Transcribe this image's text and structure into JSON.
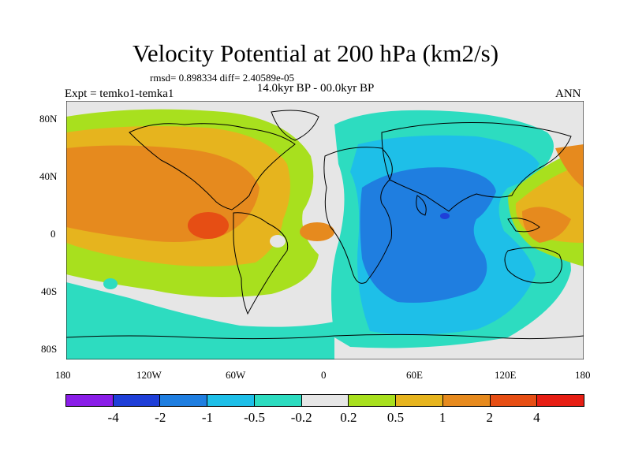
{
  "title": "Velocity Potential at 200 hPa (km2/s)",
  "stats": "rmsd= 0.898334 diff= 2.40589e-05",
  "period": "14.0kyr BP - 00.0kyr BP",
  "expt": "Expt = temko1-temka1",
  "season": "ANN",
  "lat_ticks": [
    "80N",
    "40N",
    "0",
    "40S",
    "80S"
  ],
  "lon_ticks": [
    "180",
    "120W",
    "60W",
    "0",
    "60E",
    "120E",
    "180"
  ],
  "colorbar": {
    "colors": [
      "#8a1ee8",
      "#1f3fd8",
      "#1f7ee0",
      "#1ebfe8",
      "#2ddcc0",
      "#e6e6e6",
      "#a8e01e",
      "#e6b41e",
      "#e68a1e",
      "#e64e14",
      "#e61e14"
    ],
    "labels": [
      "-4",
      "-2",
      "-1",
      "-0.5",
      "-0.2",
      "0.2",
      "0.5",
      "1",
      "2",
      "4"
    ]
  }
}
